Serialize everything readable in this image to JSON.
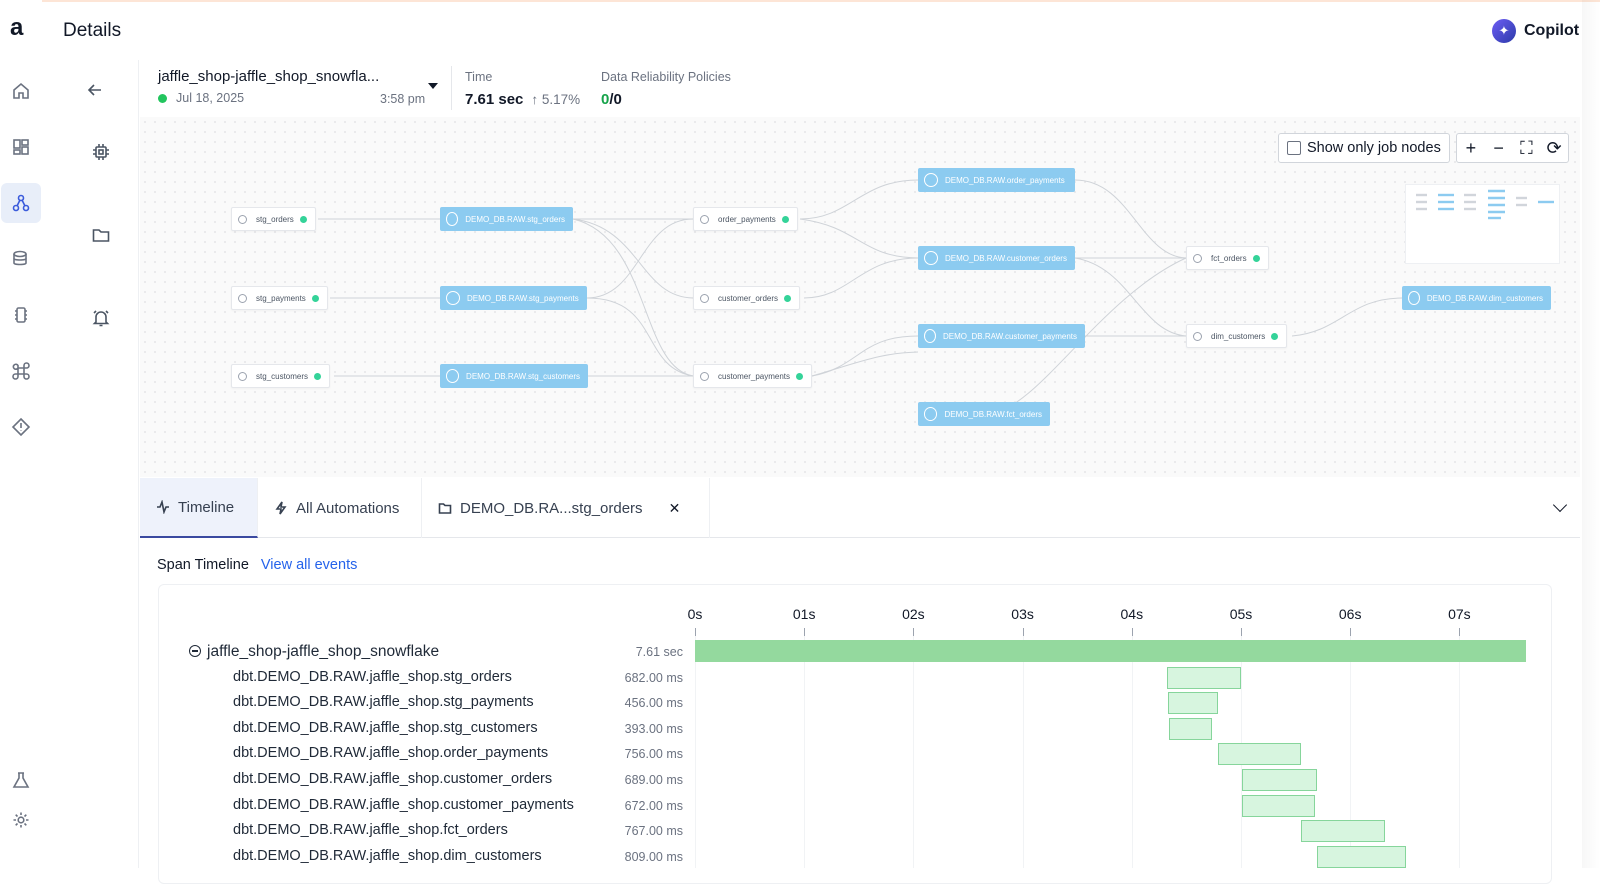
{
  "app": {
    "header_title": "Details",
    "copilot_label": "Copilot"
  },
  "run": {
    "name": "jaffle_shop-jaffle_shop_snowfla...",
    "date": "Jul 18, 2025",
    "time": "3:58 pm",
    "status_color": "#22c55e"
  },
  "stats": {
    "time_label": "Time",
    "time_value": "7.61 sec",
    "time_delta": "5.17%",
    "policies_label": "Data Reliability Policies",
    "policies_passed": "0",
    "policies_total": "/0"
  },
  "graph": {
    "show_only_job_nodes_label": "Show only job nodes",
    "show_only_job_nodes_checked": false,
    "zoom_controls": [
      "+",
      "−",
      "fit-screen-icon",
      "refresh-icon"
    ],
    "nodes": [
      {
        "id": "n1",
        "kind": "job",
        "label": "stg_orders"
      },
      {
        "id": "n2",
        "kind": "job",
        "label": "stg_payments"
      },
      {
        "id": "n3",
        "kind": "job",
        "label": "stg_customers"
      },
      {
        "id": "n4",
        "kind": "table",
        "label": "DEMO_DB.RAW.stg_orders"
      },
      {
        "id": "n5",
        "kind": "table",
        "label": "DEMO_DB.RAW.stg_payments"
      },
      {
        "id": "n6",
        "kind": "table",
        "label": "DEMO_DB.RAW.stg_customers"
      },
      {
        "id": "n7",
        "kind": "job",
        "label": "order_payments"
      },
      {
        "id": "n8",
        "kind": "job",
        "label": "customer_orders"
      },
      {
        "id": "n9",
        "kind": "job",
        "label": "customer_payments"
      },
      {
        "id": "n10",
        "kind": "table",
        "label": "DEMO_DB.RAW.order_payments"
      },
      {
        "id": "n11",
        "kind": "table",
        "label": "DEMO_DB.RAW.customer_orders"
      },
      {
        "id": "n12",
        "kind": "table",
        "label": "DEMO_DB.RAW.customer_payments"
      },
      {
        "id": "n13",
        "kind": "table",
        "label": "DEMO_DB.RAW.fct_orders"
      },
      {
        "id": "n14",
        "kind": "job",
        "label": "fct_orders"
      },
      {
        "id": "n15",
        "kind": "job",
        "label": "dim_customers"
      },
      {
        "id": "n16",
        "kind": "table",
        "label": "DEMO_DB.RAW.dim_customers"
      }
    ]
  },
  "tabs": [
    {
      "label": "Timeline",
      "icon": "activity-icon",
      "active": true
    },
    {
      "label": "All Automations",
      "icon": "lightning-icon",
      "active": false
    },
    {
      "label": "DEMO_DB.RA...stg_orders",
      "icon": "folder-icon",
      "active": false,
      "closable": true
    }
  ],
  "span_timeline": {
    "title": "Span Timeline",
    "view_all_link": "View all events",
    "axis_ticks": [
      "0s",
      "01s",
      "02s",
      "03s",
      "04s",
      "05s",
      "06s",
      "07s"
    ],
    "root": {
      "name": "jaffle_shop-jaffle_shop_snowflake",
      "duration": "7.61 sec",
      "start_s": 0,
      "dur_s": 7.61
    },
    "spans": [
      {
        "name": "dbt.DEMO_DB.RAW.jaffle_shop.stg_orders",
        "duration": "682.00 ms",
        "start_s": 4.32,
        "dur_s": 0.682
      },
      {
        "name": "dbt.DEMO_DB.RAW.jaffle_shop.stg_payments",
        "duration": "456.00 ms",
        "start_s": 4.33,
        "dur_s": 0.456
      },
      {
        "name": "dbt.DEMO_DB.RAW.jaffle_shop.stg_customers",
        "duration": "393.00 ms",
        "start_s": 4.34,
        "dur_s": 0.393
      },
      {
        "name": "dbt.DEMO_DB.RAW.jaffle_shop.order_payments",
        "duration": "756.00 ms",
        "start_s": 4.79,
        "dur_s": 0.756
      },
      {
        "name": "dbt.DEMO_DB.RAW.jaffle_shop.customer_orders",
        "duration": "689.00 ms",
        "start_s": 5.01,
        "dur_s": 0.689
      },
      {
        "name": "dbt.DEMO_DB.RAW.jaffle_shop.customer_payments",
        "duration": "672.00 ms",
        "start_s": 5.01,
        "dur_s": 0.672
      },
      {
        "name": "dbt.DEMO_DB.RAW.jaffle_shop.fct_orders",
        "duration": "767.00 ms",
        "start_s": 5.55,
        "dur_s": 0.767
      },
      {
        "name": "dbt.DEMO_DB.RAW.jaffle_shop.dim_customers",
        "duration": "809.00 ms",
        "start_s": 5.7,
        "dur_s": 0.809
      }
    ]
  }
}
